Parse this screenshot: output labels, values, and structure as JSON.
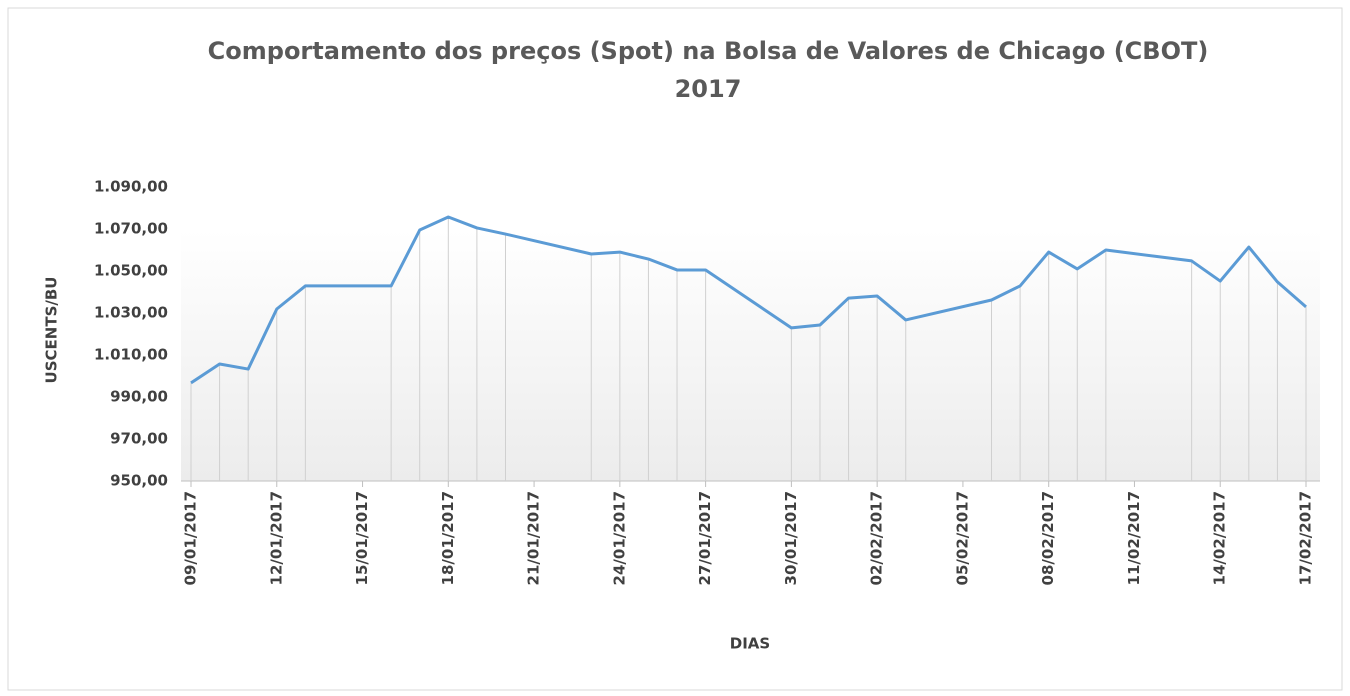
{
  "chart_data": {
    "type": "line",
    "title": [
      "Comportamento dos preços (Spot) na Bolsa de Valores de Chicago (CBOT)",
      "2017"
    ],
    "y_label": "USCENTS/BU",
    "x_label": "DIAS",
    "color": "#5b9bd5",
    "x": [
      "09/01/2017",
      "10/01/2017",
      "11/01/2017",
      "12/01/2017",
      "13/01/2017",
      "16/01/2017",
      "17/01/2017",
      "18/01/2017",
      "19/01/2017",
      "20/01/2017",
      "23/01/2017",
      "24/01/2017",
      "25/01/2017",
      "26/01/2017",
      "27/01/2017",
      "30/01/2017",
      "31/01/2017",
      "01/02/2017",
      "02/02/2017",
      "03/02/2017",
      "06/02/2017",
      "07/02/2017",
      "08/02/2017",
      "09/02/2017",
      "10/02/2017",
      "13/02/2017",
      "14/02/2017",
      "15/02/2017",
      "16/02/2017",
      "17/02/2017"
    ],
    "values": [
      996.7,
      1005.7,
      1003.3,
      1031.9,
      1042.9,
      1042.9,
      1069.5,
      1075.7,
      1070.5,
      1067.6,
      1058.1,
      1059.0,
      1055.7,
      1050.5,
      1050.5,
      1022.9,
      1024.3,
      1037.1,
      1038.1,
      1026.7,
      1036.2,
      1042.9,
      1059.0,
      1051.0,
      1060.0,
      1054.8,
      1045.2,
      1061.4,
      1044.8,
      1032.9
    ],
    "xlim": [
      "09/01/2017",
      "17/02/2017"
    ],
    "xticks": [
      "09/01/2017",
      "12/01/2017",
      "15/01/2017",
      "18/01/2017",
      "21/01/2017",
      "24/01/2017",
      "27/01/2017",
      "30/01/2017",
      "02/02/2017",
      "05/02/2017",
      "08/02/2017",
      "11/02/2017",
      "14/02/2017",
      "17/02/2017"
    ],
    "ylim": [
      950,
      1090
    ],
    "yticks": [
      {
        "value": 950,
        "label": "950,00"
      },
      {
        "value": 970,
        "label": "970,00"
      },
      {
        "value": 990,
        "label": "990,00"
      },
      {
        "value": 1010,
        "label": "1.010,00"
      },
      {
        "value": 1030,
        "label": "1.030,00"
      },
      {
        "value": 1050,
        "label": "1.050,00"
      },
      {
        "value": 1070,
        "label": "1.070,00"
      },
      {
        "value": 1090,
        "label": "1.090,00"
      }
    ],
    "drop_lines": true
  }
}
